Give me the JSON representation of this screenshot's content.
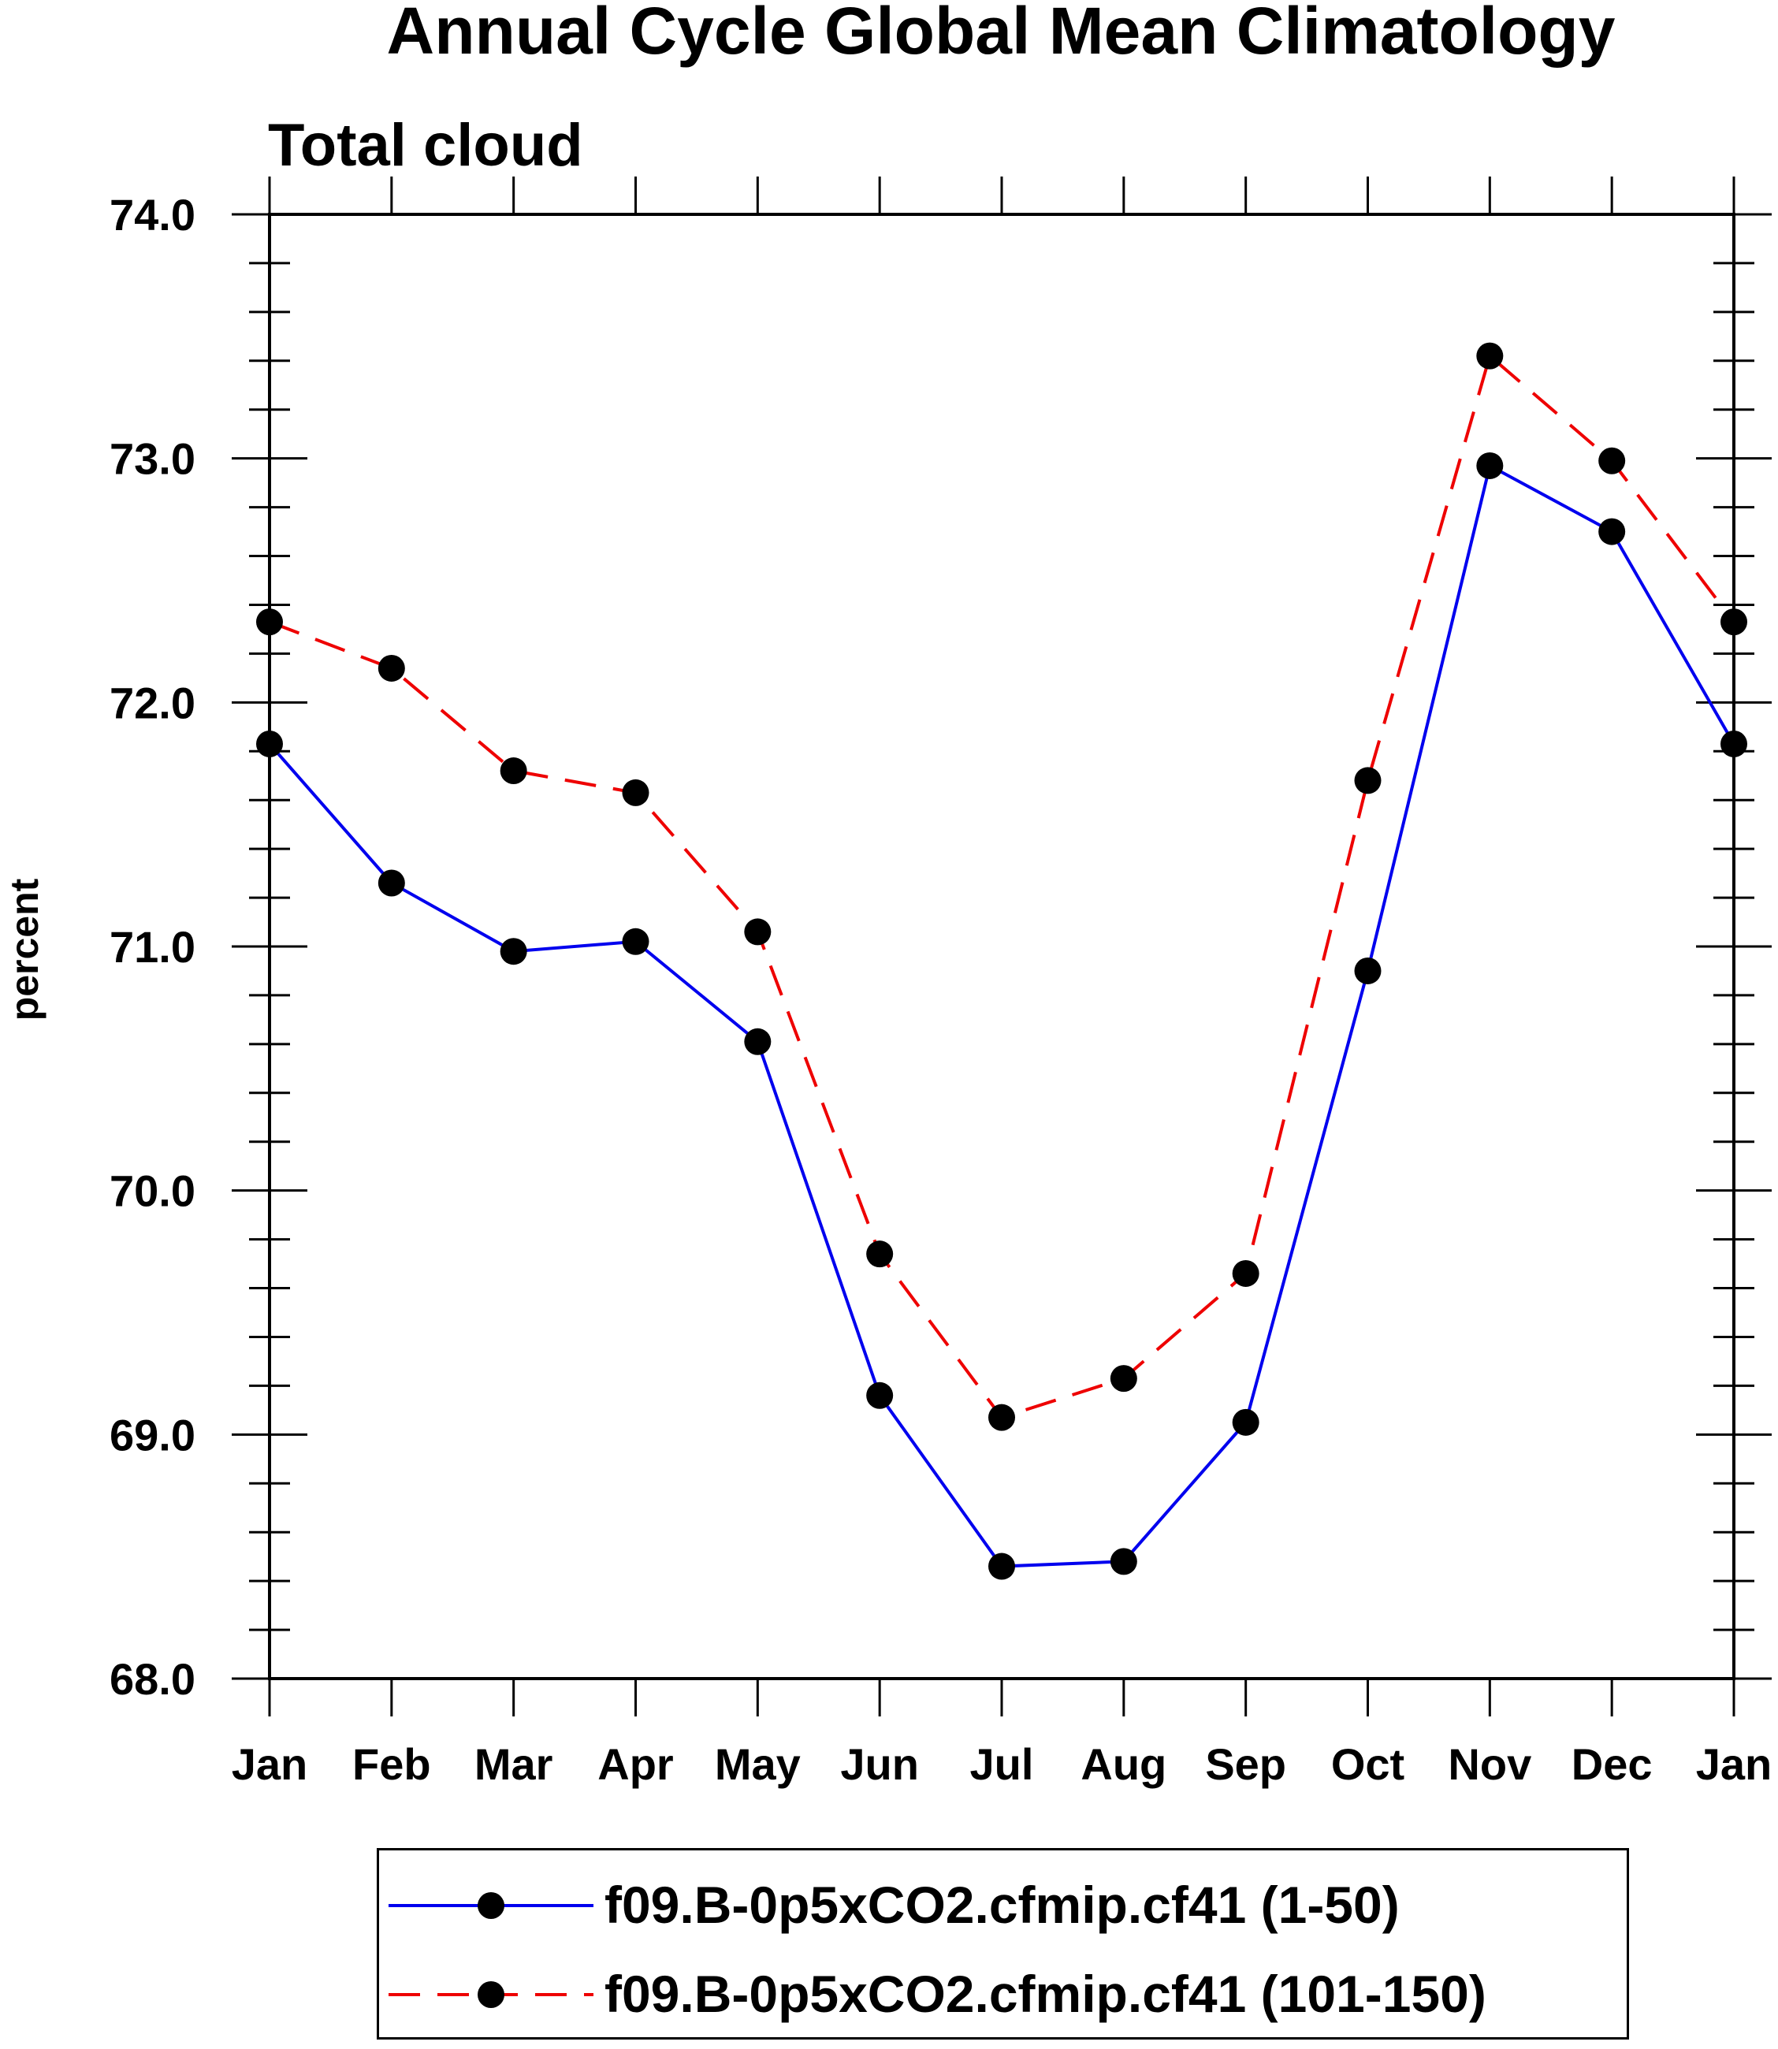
{
  "chart_data": {
    "type": "line",
    "title": "Annual Cycle Global Mean Climatology",
    "subtitle": "Total cloud",
    "xlabel": "",
    "ylabel": "percent",
    "categories": [
      "Jan",
      "Feb",
      "Mar",
      "Apr",
      "May",
      "Jun",
      "Jul",
      "Aug",
      "Sep",
      "Oct",
      "Nov",
      "Dec",
      "Jan"
    ],
    "ylim": [
      68.0,
      74.0
    ],
    "yticks": [
      "68.0",
      "69.0",
      "70.0",
      "71.0",
      "72.0",
      "73.0",
      "74.0"
    ],
    "series": [
      {
        "name": "f09.B-0p5xCO2.cfmip.cf41 (1-50)",
        "color": "#0000ee",
        "dash": "solid",
        "values": [
          71.83,
          71.26,
          70.98,
          71.02,
          70.61,
          69.16,
          68.46,
          68.48,
          69.05,
          70.9,
          72.97,
          72.7,
          71.83
        ]
      },
      {
        "name": "f09.B-0p5xCO2.cfmip.cf41 (101-150)",
        "color": "#ee0000",
        "dash": "dashed",
        "values": [
          72.33,
          72.14,
          71.72,
          71.63,
          71.06,
          69.74,
          69.07,
          69.23,
          69.66,
          71.68,
          73.42,
          72.99,
          72.33
        ]
      }
    ],
    "marker": "filled-circle",
    "marker_color": "#000000",
    "grid": false,
    "legend_position": "bottom"
  }
}
